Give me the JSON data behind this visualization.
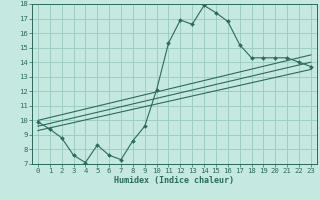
{
  "title": "",
  "xlabel": "Humidex (Indice chaleur)",
  "ylabel": "",
  "bg_color": "#c5e8e0",
  "line_color": "#2a6b5e",
  "grid_color": "#9ecec4",
  "xlim": [
    -0.5,
    23.5
  ],
  "ylim": [
    7,
    18
  ],
  "xticks": [
    0,
    1,
    2,
    3,
    4,
    5,
    6,
    7,
    8,
    9,
    10,
    11,
    12,
    13,
    14,
    15,
    16,
    17,
    18,
    19,
    20,
    21,
    22,
    23
  ],
  "yticks": [
    7,
    8,
    9,
    10,
    11,
    12,
    13,
    14,
    15,
    16,
    17,
    18
  ],
  "line1_x": [
    0,
    1,
    2,
    3,
    4,
    5,
    6,
    7,
    8,
    9,
    10,
    11,
    12,
    13,
    14,
    15,
    16,
    17,
    18,
    19,
    20,
    21,
    22,
    23
  ],
  "line1_y": [
    9.9,
    9.4,
    8.8,
    7.6,
    7.1,
    8.3,
    7.6,
    7.3,
    8.6,
    9.6,
    12.1,
    15.3,
    16.9,
    16.6,
    17.9,
    17.4,
    16.8,
    15.2,
    14.3,
    14.3,
    14.3,
    14.3,
    14.0,
    13.7
  ],
  "line2_x": [
    0,
    23
  ],
  "line2_y": [
    10.0,
    14.5
  ],
  "line3_x": [
    0,
    23
  ],
  "line3_y": [
    9.3,
    13.5
  ],
  "line4_x": [
    0,
    23
  ],
  "line4_y": [
    9.6,
    14.0
  ],
  "xlabel_fontsize": 6.0,
  "tick_fontsize": 5.2
}
